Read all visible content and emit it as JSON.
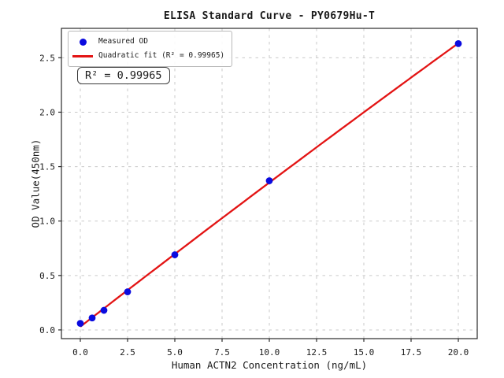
{
  "chart": {
    "title": "ELISA Standard Curve - PY0679Hu-T",
    "xlabel": "Human ACTN2 Concentration (ng/mL)",
    "ylabel": "OD Value(450nm)",
    "legend": {
      "measured_label": "Measured OD",
      "fit_label": "Quadratic fit (R² = 0.99965)"
    },
    "annotation": "R² = 0.99965"
  },
  "chart_data": {
    "type": "scatter",
    "title": "ELISA Standard Curve - PY0679Hu-T",
    "xlabel": "Human ACTN2 Concentration (ng/mL)",
    "ylabel": "OD Value(450nm)",
    "x": [
      0,
      0.625,
      1.25,
      2.5,
      5,
      10,
      20
    ],
    "series": [
      {
        "name": "Measured OD",
        "type": "scatter",
        "color": "#0b0bdf",
        "values": [
          0.06,
          0.11,
          0.18,
          0.35,
          0.69,
          1.37,
          2.63
        ]
      },
      {
        "name": "Quadratic fit (R² = 0.99965)",
        "type": "line",
        "color": "#e31414",
        "fit": "quadratic"
      }
    ],
    "r_squared": 0.99965,
    "xticks": [
      0.0,
      2.5,
      5.0,
      7.5,
      10.0,
      12.5,
      15.0,
      17.5,
      20.0
    ],
    "yticks": [
      0.0,
      0.5,
      1.0,
      1.5,
      2.0,
      2.5
    ],
    "xlim": [
      -1.0,
      21.0
    ],
    "ylim": [
      -0.08,
      2.77
    ],
    "grid": true,
    "grid_color": "#c9c9c9",
    "spine_color": "#2a2a2a",
    "tick_label_color": "#1a1a1a",
    "legend_position": "upper left"
  }
}
